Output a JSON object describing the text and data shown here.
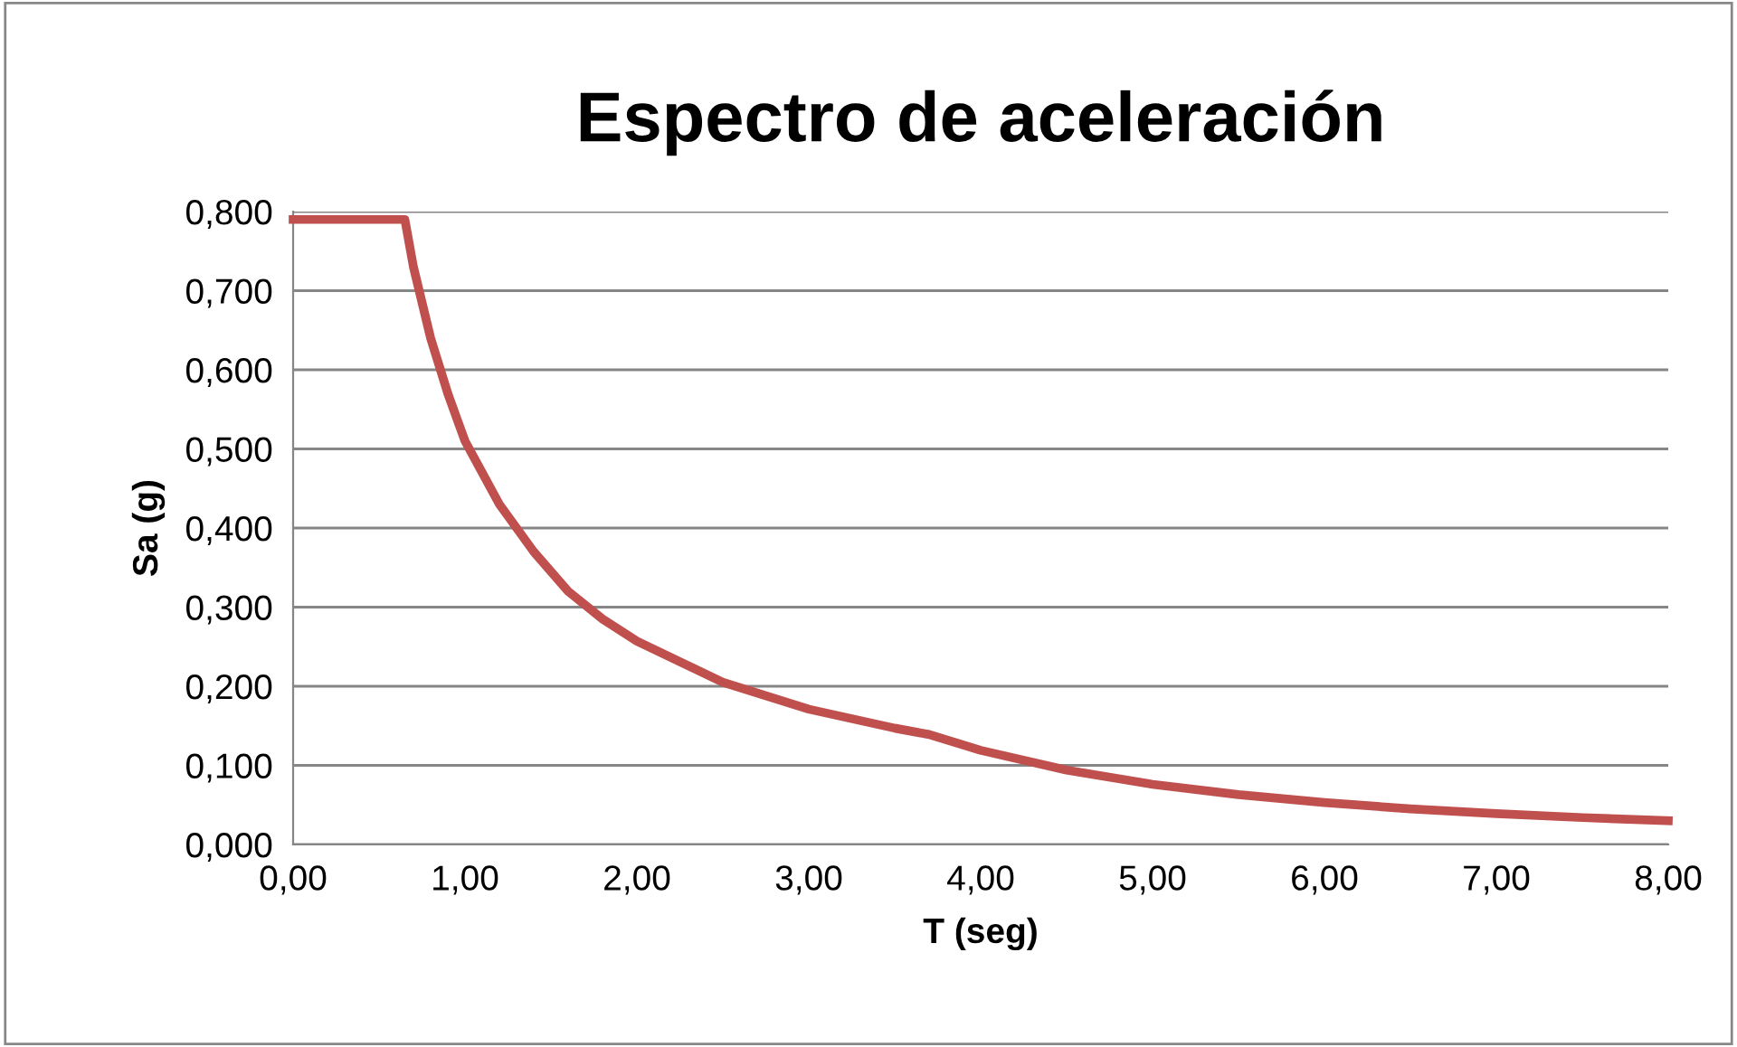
{
  "chart_data": {
    "type": "line",
    "title": "Espectro de aceleración",
    "xlabel": "T (seg)",
    "ylabel": "Sa (g)",
    "x": [
      0,
      0.6,
      0.65,
      0.7,
      0.8,
      0.9,
      1.0,
      1.2,
      1.4,
      1.6,
      1.8,
      2.0,
      2.5,
      3.0,
      3.5,
      3.7,
      4.0,
      4.5,
      5.0,
      5.5,
      6.0,
      6.5,
      7.0,
      7.5,
      8.0
    ],
    "series": [
      {
        "color": "#c0504d",
        "values": [
          0.79,
          0.79,
          0.79,
          0.73,
          0.64,
          0.57,
          0.51,
          0.43,
          0.37,
          0.32,
          0.285,
          0.257,
          0.205,
          0.171,
          0.147,
          0.139,
          0.119,
          0.094,
          0.076,
          0.063,
          0.053,
          0.045,
          0.039,
          0.034,
          0.03
        ]
      }
    ],
    "xlim": [
      0,
      8
    ],
    "ylim": [
      0,
      0.8
    ],
    "xticks": [
      {
        "value": 0,
        "label": "0,00"
      },
      {
        "value": 1,
        "label": "1,00"
      },
      {
        "value": 2,
        "label": "2,00"
      },
      {
        "value": 3,
        "label": "3,00"
      },
      {
        "value": 4,
        "label": "4,00"
      },
      {
        "value": 5,
        "label": "5,00"
      },
      {
        "value": 6,
        "label": "6,00"
      },
      {
        "value": 7,
        "label": "7,00"
      },
      {
        "value": 8,
        "label": "8,00"
      }
    ],
    "yticks": [
      {
        "value": 0,
        "label": "0,000"
      },
      {
        "value": 0.1,
        "label": "0,100"
      },
      {
        "value": 0.2,
        "label": "0,200"
      },
      {
        "value": 0.3,
        "label": "0,300"
      },
      {
        "value": 0.4,
        "label": "0,400"
      },
      {
        "value": 0.5,
        "label": "0,500"
      },
      {
        "value": 0.6,
        "label": "0,600"
      },
      {
        "value": 0.7,
        "label": "0,700"
      },
      {
        "value": 0.8,
        "label": "0,800"
      }
    ],
    "grid": "y",
    "marker": "none",
    "line_style": "solid"
  }
}
